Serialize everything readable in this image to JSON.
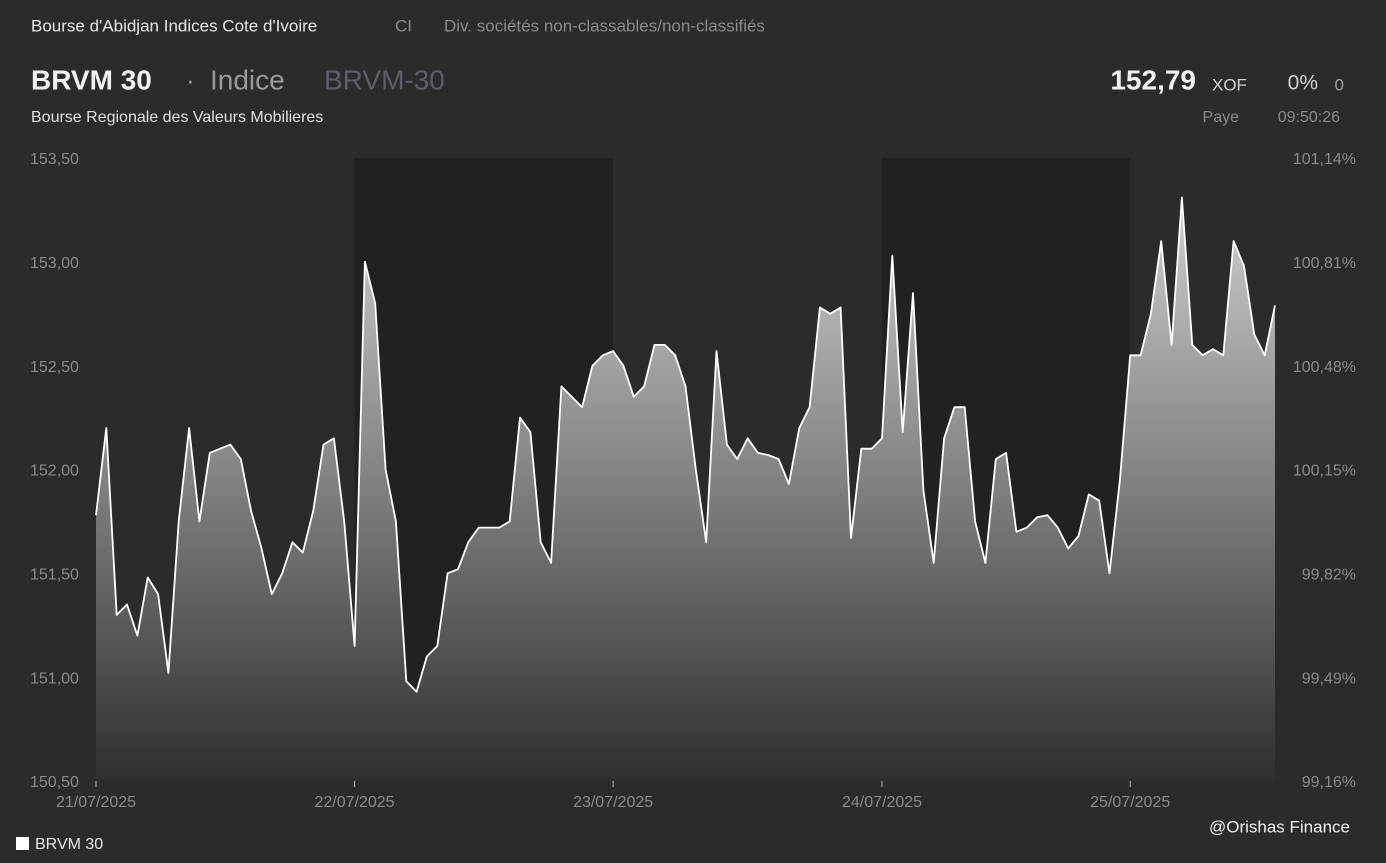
{
  "header": {
    "exchange": "Bourse d'Abidjan Indices Cote d'Ivoire",
    "country": "CI",
    "sector": "Div. sociétés non-classables/non-classifiés",
    "name": "BRVM 30",
    "separator": "·",
    "kind": "Indice",
    "code": "BRVM-30",
    "market": "Bourse Regionale des Valeurs Mobilieres",
    "last_price": "152,79",
    "currency": "XOF",
    "change_pct": "0%",
    "change": "0",
    "status": "Paye",
    "time": "09:50:26"
  },
  "watermark": "@Orishas Finance",
  "chart_data": {
    "type": "area",
    "series": [
      {
        "name": "BRVM 30",
        "color": "#ffffff",
        "values": [
          151.78,
          152.2,
          151.3,
          151.35,
          151.2,
          151.48,
          151.4,
          151.02,
          151.75,
          152.2,
          151.75,
          152.08,
          152.1,
          152.12,
          152.05,
          151.8,
          151.62,
          151.4,
          151.5,
          151.65,
          151.6,
          151.8,
          152.12,
          152.15,
          151.75,
          151.15,
          153.0,
          152.8,
          152.0,
          151.75,
          150.98,
          150.93,
          151.1,
          151.15,
          151.5,
          151.52,
          151.65,
          151.72,
          151.72,
          151.72,
          151.75,
          152.25,
          152.18,
          151.65,
          151.55,
          152.4,
          152.35,
          152.3,
          152.5,
          152.55,
          152.57,
          152.5,
          152.35,
          152.4,
          152.6,
          152.6,
          152.55,
          152.4,
          152.0,
          151.65,
          152.57,
          152.12,
          152.05,
          152.15,
          152.08,
          152.07,
          152.05,
          151.93,
          152.2,
          152.3,
          152.78,
          152.75,
          152.78,
          151.67,
          152.1,
          152.1,
          152.15,
          153.03,
          152.18,
          152.85,
          151.9,
          151.55,
          152.15,
          152.3,
          152.3,
          151.75,
          151.55,
          152.05,
          152.08,
          151.7,
          151.72,
          151.77,
          151.78,
          151.72,
          151.62,
          151.68,
          151.88,
          151.85,
          151.5,
          151.95,
          152.55,
          152.55,
          152.75,
          153.1,
          152.6,
          153.31,
          152.6,
          152.55,
          152.58,
          152.55,
          153.1,
          152.98,
          152.65,
          152.55,
          152.79
        ]
      }
    ],
    "xlim": [
      0,
      114
    ],
    "xticks": [
      {
        "value": 0,
        "label": "21/07/2025"
      },
      {
        "value": 25,
        "label": "22/07/2025"
      },
      {
        "value": 50,
        "label": "23/07/2025"
      },
      {
        "value": 76,
        "label": "24/07/2025"
      },
      {
        "value": 100,
        "label": "25/07/2025"
      }
    ],
    "ylim": [
      150.5,
      153.5
    ],
    "yticks": [
      {
        "value": 150.5,
        "label": "150,50"
      },
      {
        "value": 151,
        "label": "151,00"
      },
      {
        "value": 151.5,
        "label": "151,50"
      },
      {
        "value": 152,
        "label": "152,00"
      },
      {
        "value": 152.5,
        "label": "152,50"
      },
      {
        "value": 153,
        "label": "153,00"
      },
      {
        "value": 153.5,
        "label": "153,50"
      }
    ],
    "y2lim": [
      99.16,
      101.14
    ],
    "y2ticks": [
      {
        "value": 99.16,
        "label": "99,16%"
      },
      {
        "value": 99.49,
        "label": "99,49%"
      },
      {
        "value": 99.82,
        "label": "99,82%"
      },
      {
        "value": 100.15,
        "label": "100,15%"
      },
      {
        "value": 100.48,
        "label": "100,48%"
      },
      {
        "value": 100.81,
        "label": "100,81%"
      },
      {
        "value": 101.14,
        "label": "101,14%"
      }
    ],
    "day_shading": [
      "#2b2b2b",
      "#212121"
    ]
  }
}
